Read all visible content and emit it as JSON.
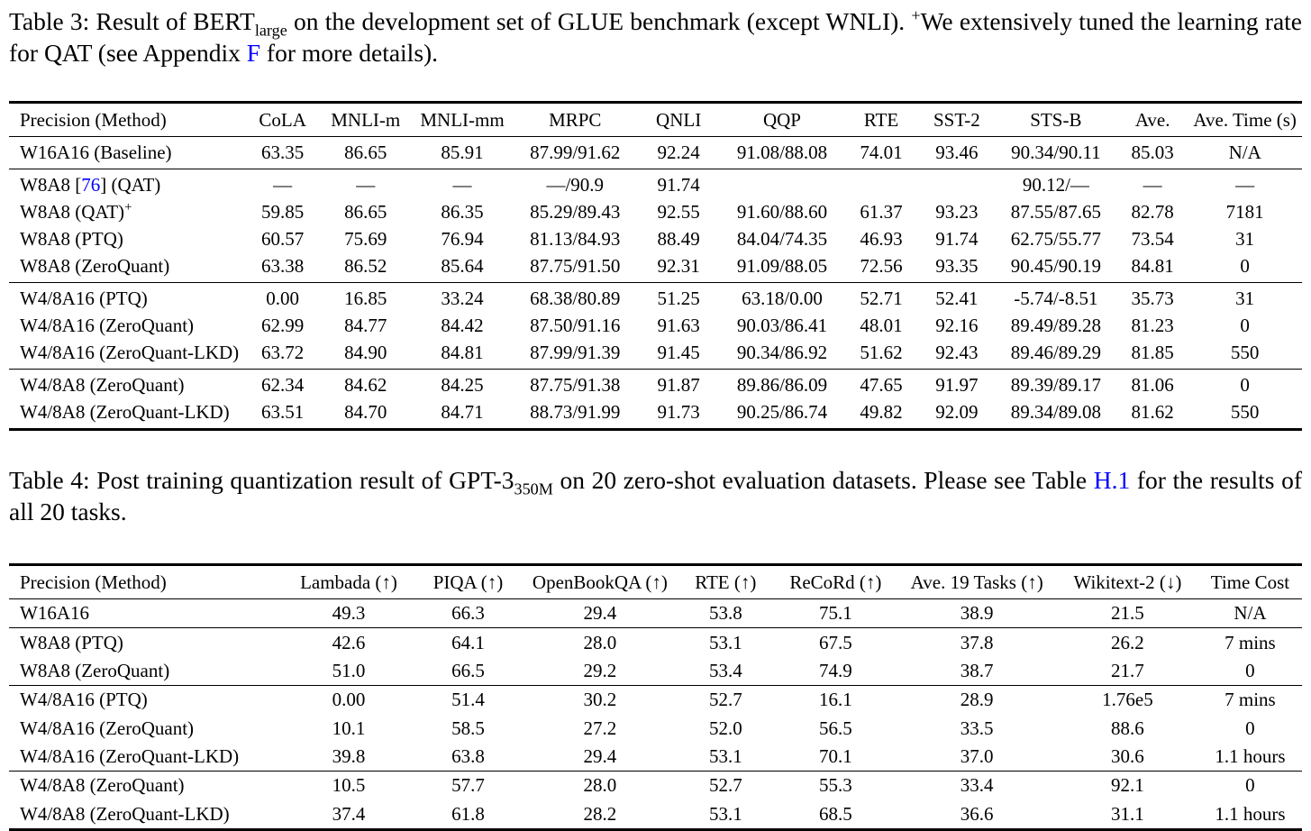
{
  "colors": {
    "background": "#ffffff",
    "text": "#000000",
    "link_blue": "#0000ff"
  },
  "table3": {
    "caption": {
      "seg1": "Table 3: Result of BERT",
      "sub": "large",
      "seg2": " on the development set of GLUE benchmark (except WNLI). ",
      "sup": "+",
      "seg3": "We extensively tuned the learning rate for QAT (see Appendix ",
      "link": "F",
      "seg4": " for more details)."
    },
    "columns": [
      "Precision (Method)",
      "CoLA",
      "MNLI-m",
      "MNLI-mm",
      "MRPC",
      "QNLI",
      "QQP",
      "RTE",
      "SST-2",
      "STS-B",
      "Ave.",
      "Ave. Time (s)"
    ],
    "groups": [
      [
        [
          "W16A16 (Baseline)",
          "63.35",
          "86.65",
          "85.91",
          "87.99/91.62",
          "92.24",
          "91.08/88.08",
          "74.01",
          "93.46",
          "90.34/90.11",
          "85.03",
          "N/A"
        ]
      ],
      [
        [
          [
            "W8A8 [",
            {
              "link": "76",
              "name": "citation-76-link"
            },
            "] (QAT)"
          ],
          "—",
          "—",
          "—",
          "—/90.9",
          "91.74",
          "",
          "",
          "",
          "90.12/—",
          "—",
          "—"
        ],
        [
          [
            "W8A8 (QAT)",
            {
              "sup": "+"
            }
          ],
          "59.85",
          "86.65",
          "86.35",
          "85.29/89.43",
          "92.55",
          "91.60/88.60",
          "61.37",
          "93.23",
          "87.55/87.65",
          "82.78",
          "7181"
        ],
        [
          "W8A8 (PTQ)",
          "60.57",
          "75.69",
          "76.94",
          "81.13/84.93",
          "88.49",
          "84.04/74.35",
          "46.93",
          "91.74",
          "62.75/55.77",
          "73.54",
          "31"
        ],
        [
          "W8A8 (ZeroQuant)",
          "63.38",
          "86.52",
          "85.64",
          "87.75/91.50",
          "92.31",
          "91.09/88.05",
          "72.56",
          "93.35",
          "90.45/90.19",
          "84.81",
          "0"
        ]
      ],
      [
        [
          "W4/8A16 (PTQ)",
          "0.00",
          "16.85",
          "33.24",
          "68.38/80.89",
          "51.25",
          "63.18/0.00",
          "52.71",
          "52.41",
          "-5.74/-8.51",
          "35.73",
          "31"
        ],
        [
          "W4/8A16 (ZeroQuant)",
          "62.99",
          "84.77",
          "84.42",
          "87.50/91.16",
          "91.63",
          "90.03/86.41",
          "48.01",
          "92.16",
          "89.49/89.28",
          "81.23",
          "0"
        ],
        [
          "W4/8A16 (ZeroQuant-LKD)",
          "63.72",
          "84.90",
          "84.81",
          "87.99/91.39",
          "91.45",
          "90.34/86.92",
          "51.62",
          "92.43",
          "89.46/89.29",
          "81.85",
          "550"
        ]
      ],
      [
        [
          "W4/8A8 (ZeroQuant)",
          "62.34",
          "84.62",
          "84.25",
          "87.75/91.38",
          "91.87",
          "89.86/86.09",
          "47.65",
          "91.97",
          "89.39/89.17",
          "81.06",
          "0"
        ],
        [
          "W4/8A8 (ZeroQuant-LKD)",
          "63.51",
          "84.70",
          "84.71",
          "88.73/91.99",
          "91.73",
          "90.25/86.74",
          "49.82",
          "92.09",
          "89.34/89.08",
          "81.62",
          "550"
        ]
      ]
    ]
  },
  "table4": {
    "caption": {
      "seg1": "Table 4: Post training quantization result of GPT-3",
      "sub": "350M",
      "seg2": " on 20 zero-shot evaluation datasets. Please see Table ",
      "link": "H.1",
      "seg3": " for the results of all 20 tasks."
    },
    "columns": [
      "Precision (Method)",
      "Lambada (↑)",
      "PIQA (↑)",
      "OpenBookQA (↑)",
      "RTE (↑)",
      "ReCoRd (↑)",
      "Ave. 19 Tasks (↑)",
      "Wikitext-2 (↓)",
      "Time Cost"
    ],
    "groups": [
      [
        [
          "W16A16",
          "49.3",
          "66.3",
          "29.4",
          "53.8",
          "75.1",
          "38.9",
          "21.5",
          "N/A"
        ]
      ],
      [
        [
          "W8A8 (PTQ)",
          "42.6",
          "64.1",
          "28.0",
          "53.1",
          "67.5",
          "37.8",
          "26.2",
          "7 mins"
        ],
        [
          "W8A8 (ZeroQuant)",
          "51.0",
          "66.5",
          "29.2",
          "53.4",
          "74.9",
          "38.7",
          "21.7",
          "0"
        ]
      ],
      [
        [
          "W4/8A16 (PTQ)",
          "0.00",
          "51.4",
          "30.2",
          "52.7",
          "16.1",
          "28.9",
          "1.76e5",
          "7 mins"
        ],
        [
          "W4/8A16 (ZeroQuant)",
          "10.1",
          "58.5",
          "27.2",
          "52.0",
          "56.5",
          "33.5",
          "88.6",
          "0"
        ],
        [
          "W4/8A16 (ZeroQuant-LKD)",
          "39.8",
          "63.8",
          "29.4",
          "53.1",
          "70.1",
          "37.0",
          "30.6",
          "1.1 hours"
        ]
      ],
      [
        [
          "W4/8A8 (ZeroQuant)",
          "10.5",
          "57.7",
          "28.0",
          "52.7",
          "55.3",
          "33.4",
          "92.1",
          "0"
        ],
        [
          "W4/8A8 (ZeroQuant-LKD)",
          "37.4",
          "61.8",
          "28.2",
          "53.1",
          "68.5",
          "36.6",
          "31.1",
          "1.1 hours"
        ]
      ]
    ]
  }
}
